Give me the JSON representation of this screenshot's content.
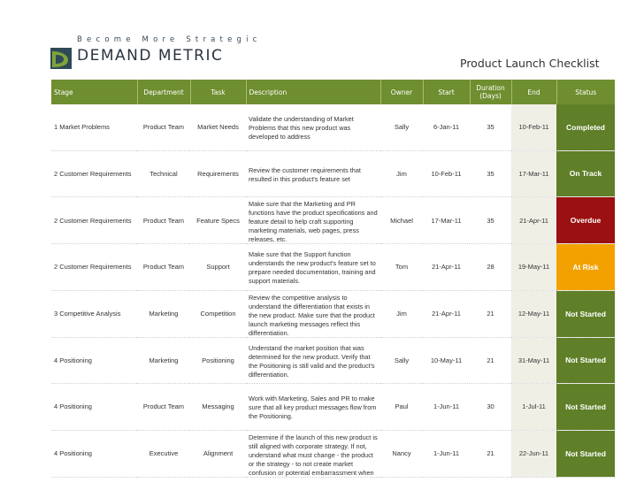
{
  "header": {
    "tagline": "Become More Strategic",
    "brand": "DEMAND METRIC",
    "logo_icon": "demand-metric-logo-icon",
    "title": "Product Launch Checklist"
  },
  "colors": {
    "header_green": "#6e8e2f",
    "completed": "#5f7f28",
    "on_track": "#5f7f28",
    "overdue": "#9b1010",
    "at_risk": "#f2a100",
    "not_started": "#5f7f28",
    "end_column": "#efefe6"
  },
  "columns": [
    "Stage",
    "Department",
    "Task",
    "Description",
    "Owner",
    "Start",
    "Duration (Days)",
    "End",
    "Status"
  ],
  "rows": [
    {
      "stage": "1 Market Problems",
      "department": "Product Team",
      "task": "Market Needs",
      "description": "Validate the understanding of Market Problems that this new product was developed to address",
      "owner": "Sally",
      "start": "6-Jan-11",
      "duration": "35",
      "end": "10-Feb-11",
      "status": "Completed",
      "status_color": "#5f7f28"
    },
    {
      "stage": "2 Customer Requirements",
      "department": "Technical",
      "task": "Requirements",
      "description": "Review the customer requirements that resulted in this product's feature set",
      "owner": "Jim",
      "start": "10-Feb-11",
      "duration": "35",
      "end": "17-Mar-11",
      "status": "On Track",
      "status_color": "#5f7f28"
    },
    {
      "stage": "2 Customer Requirements",
      "department": "Product Team",
      "task": "Feature Specs",
      "description": "Make sure that the Marketing and PR functions have the product specifications and feature detail to help craft supporting marketing materials, web pages, press releases, etc.",
      "owner": "Michael",
      "start": "17-Mar-11",
      "duration": "35",
      "end": "21-Apr-11",
      "status": "Overdue",
      "status_color": "#9b1010"
    },
    {
      "stage": "2 Customer Requirements",
      "department": "Product Team",
      "task": "Support",
      "description": "Make sure that the Support function understands the new product's feature set to prepare needed documentation, training and support materials.",
      "owner": "Tom",
      "start": "21-Apr-11",
      "duration": "28",
      "end": "19-May-11",
      "status": "At Risk",
      "status_color": "#f2a100"
    },
    {
      "stage": "3 Competitive Analysis",
      "department": "Marketing",
      "task": "Competition",
      "description": "Review the competitive analysis to understand the differentiation that exists in the new product. Make sure that the product launch marketing messages reflect this differentiation.",
      "owner": "Jim",
      "start": "21-Apr-11",
      "duration": "21",
      "end": "12-May-11",
      "status": "Not Started",
      "status_color": "#5f7f28"
    },
    {
      "stage": "4 Positioning",
      "department": "Marketing",
      "task": "Positioning",
      "description": "Understand the market position that was determined for the new product. Verify that the Positioning is still valid and the product's differentiation.",
      "owner": "Sally",
      "start": "10-May-11",
      "duration": "21",
      "end": "31-May-11",
      "status": "Not Started",
      "status_color": "#5f7f28"
    },
    {
      "stage": "4 Positioning",
      "department": "Product Team",
      "task": "Messaging",
      "description": "Work with Marketing, Sales and PR to make sure that all key product messages flow from the Positioning.",
      "owner": "Paul",
      "start": "1-Jun-11",
      "duration": "30",
      "end": "1-Jul-11",
      "status": "Not Started",
      "status_color": "#5f7f28"
    },
    {
      "stage": "4 Positioning",
      "department": "Executive",
      "task": "Alignment",
      "description": "Determine if the launch of this new product is still aligned with corporate strategy. If not, understand what must change - the product or the strategy - to not create market confusion or potential embarrassment when the product is",
      "owner": "Nancy",
      "start": "1-Jun-11",
      "duration": "21",
      "end": "22-Jun-11",
      "status": "Not Started",
      "status_color": "#5f7f28"
    }
  ]
}
